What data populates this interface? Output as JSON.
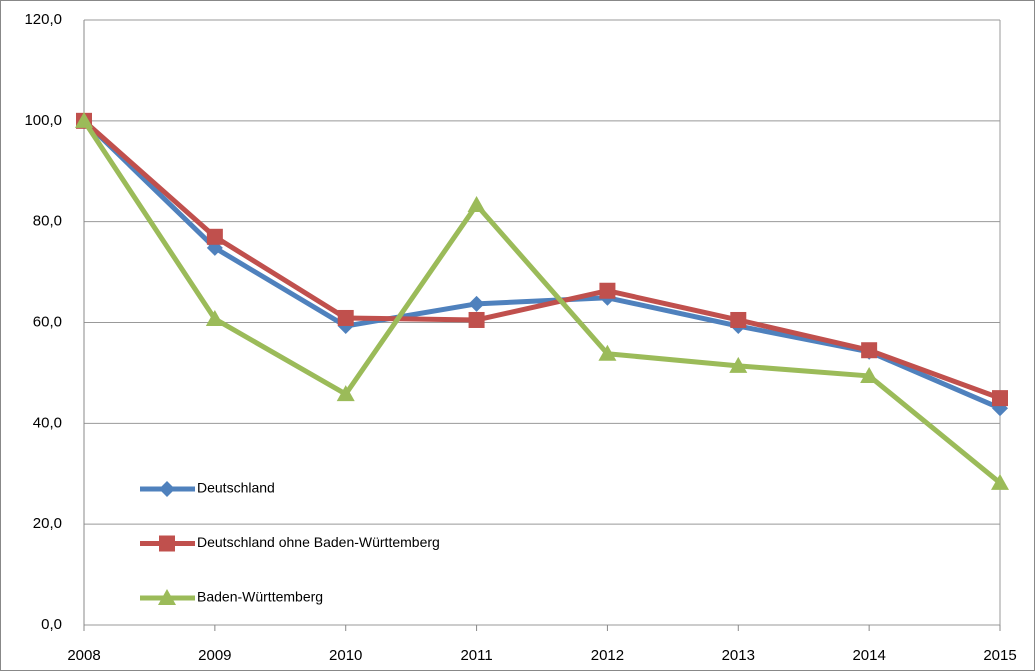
{
  "chart_data": {
    "type": "line",
    "categories": [
      "2008",
      "2009",
      "2010",
      "2011",
      "2012",
      "2013",
      "2014",
      "2015"
    ],
    "series": [
      {
        "name": "Deutschland",
        "color": "#4f81bd",
        "marker": "diamond",
        "values": [
          100,
          74.8,
          59.3,
          63.7,
          64.9,
          59.3,
          54.2,
          43
        ]
      },
      {
        "name": "Deutschland ohne Baden-Württemberg",
        "color": "#c0504d",
        "marker": "square",
        "values": [
          100,
          77,
          60.9,
          60.5,
          66.3,
          60.5,
          54.5,
          45
        ]
      },
      {
        "name": "Baden-Württemberg",
        "color": "#9bbb59",
        "marker": "triangle",
        "values": [
          100,
          60.7,
          45.8,
          83.3,
          53.8,
          51.4,
          49.4,
          28.2
        ]
      }
    ],
    "ylim": [
      0,
      120
    ],
    "yticks": [
      {
        "value": 0,
        "label": "0,0"
      },
      {
        "value": 20,
        "label": "20,0"
      },
      {
        "value": 40,
        "label": "40,0"
      },
      {
        "value": 60,
        "label": "60,0"
      },
      {
        "value": 80,
        "label": "80,0"
      },
      {
        "value": 100,
        "label": "100,0"
      },
      {
        "value": 120,
        "label": "120,0"
      }
    ],
    "grid": true,
    "legend": "lower left"
  }
}
